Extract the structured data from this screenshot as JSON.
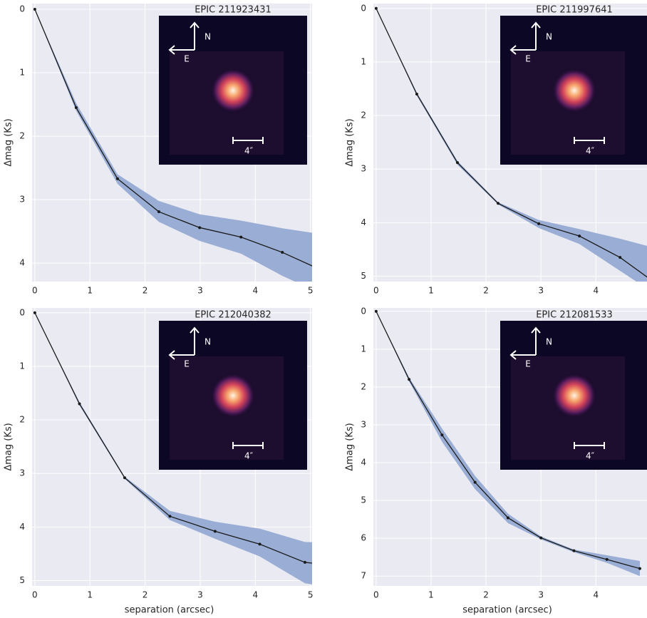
{
  "chart_data": [
    {
      "type": "line",
      "title": "EPIC 211923431",
      "ylabel": "Δmag (Ks)",
      "xlim": [
        -0.05,
        5.03
      ],
      "ylim": [
        -0.09,
        4.29
      ],
      "xticks": [
        0,
        1,
        2,
        3,
        4,
        5
      ],
      "yticks": [
        0,
        1,
        2,
        3,
        4
      ],
      "y_inverted": true,
      "grid": true,
      "band_color": "#9aaed5",
      "x": [
        0,
        0.75,
        1.5,
        2.25,
        2.99,
        3.74,
        4.49,
        5.25
      ],
      "series": [
        {
          "color": "#1a1a1a",
          "values": [
            0,
            1.55,
            2.67,
            3.19,
            3.44,
            3.59,
            3.83,
            4.13
          ],
          "lower": [
            0,
            1.48,
            2.6,
            3.02,
            3.23,
            3.33,
            3.45,
            3.55
          ],
          "upper": [
            0,
            1.6,
            2.75,
            3.35,
            3.65,
            3.85,
            4.2,
            4.5
          ]
        }
      ],
      "inset": {
        "north": "N",
        "east": "E",
        "scale": "4″"
      }
    },
    {
      "type": "line",
      "title": "EPIC 211997641",
      "ylabel": "Δmag (Ks)",
      "xlim": [
        -0.05,
        4.93
      ],
      "ylim": [
        -0.09,
        5.1
      ],
      "xticks": [
        0,
        1,
        2,
        3,
        4
      ],
      "yticks": [
        0,
        1,
        2,
        3,
        4,
        5
      ],
      "y_inverted": true,
      "grid": true,
      "band_color": "#9aaed5",
      "x": [
        0,
        0.74,
        1.48,
        2.22,
        2.96,
        3.7,
        4.44,
        5.18
      ],
      "series": [
        {
          "color": "#1a1a1a",
          "values": [
            0,
            1.6,
            2.88,
            3.64,
            4.02,
            4.25,
            4.65,
            5.2
          ],
          "lower": [
            0,
            1.57,
            2.85,
            3.62,
            3.95,
            4.12,
            4.3,
            4.5
          ],
          "upper": [
            0,
            1.63,
            2.92,
            3.66,
            4.1,
            4.4,
            4.9,
            5.4
          ]
        }
      ],
      "inset": {
        "north": "N",
        "east": "E",
        "scale": "4″"
      }
    },
    {
      "type": "line",
      "title": "EPIC 212040382",
      "ylabel": "Δmag (Ks)",
      "xlabel": "separation (arcsec)",
      "xlim": [
        -0.05,
        5.03
      ],
      "ylim": [
        -0.09,
        5.1
      ],
      "xticks": [
        0,
        1,
        2,
        3,
        4,
        5
      ],
      "yticks": [
        0,
        1,
        2,
        3,
        4,
        5
      ],
      "y_inverted": true,
      "grid": true,
      "band_color": "#9aaed5",
      "x": [
        0,
        0.81,
        1.63,
        2.45,
        3.27,
        4.08,
        4.9,
        5.72
      ],
      "series": [
        {
          "color": "#1a1a1a",
          "values": [
            0,
            1.7,
            3.08,
            3.8,
            4.08,
            4.32,
            4.66,
            4.75
          ],
          "lower": [
            0,
            1.67,
            3.06,
            3.7,
            3.9,
            4.03,
            4.28,
            4.3
          ],
          "upper": [
            0,
            1.73,
            3.1,
            3.87,
            4.22,
            4.55,
            5.05,
            5.2
          ]
        }
      ],
      "inset": {
        "north": "N",
        "east": "E",
        "scale": "4″"
      }
    },
    {
      "type": "line",
      "title": "EPIC 212081533",
      "ylabel": "Δmag (Ks)",
      "xlabel": "separation (arcsec)",
      "xlim": [
        -0.05,
        4.93
      ],
      "ylim": [
        -0.09,
        7.26
      ],
      "xticks": [
        0,
        1,
        2,
        3,
        4
      ],
      "yticks": [
        0,
        1,
        2,
        3,
        4,
        5,
        6,
        7
      ],
      "y_inverted": true,
      "grid": true,
      "band_color": "#9aaed5",
      "x": [
        0,
        0.6,
        1.2,
        1.8,
        2.4,
        3,
        3.6,
        4.2,
        4.8
      ],
      "series": [
        {
          "color": "#1a1a1a",
          "values": [
            0,
            1.8,
            3.27,
            4.52,
            5.46,
            5.99,
            6.33,
            6.56,
            6.8
          ],
          "lower": [
            0,
            1.75,
            3.1,
            4.35,
            5.35,
            5.95,
            6.3,
            6.45,
            6.6
          ],
          "upper": [
            0,
            1.85,
            3.45,
            4.7,
            5.6,
            6.03,
            6.37,
            6.65,
            7.0
          ]
        }
      ],
      "inset": {
        "north": "N",
        "east": "E",
        "scale": "4″"
      }
    }
  ]
}
